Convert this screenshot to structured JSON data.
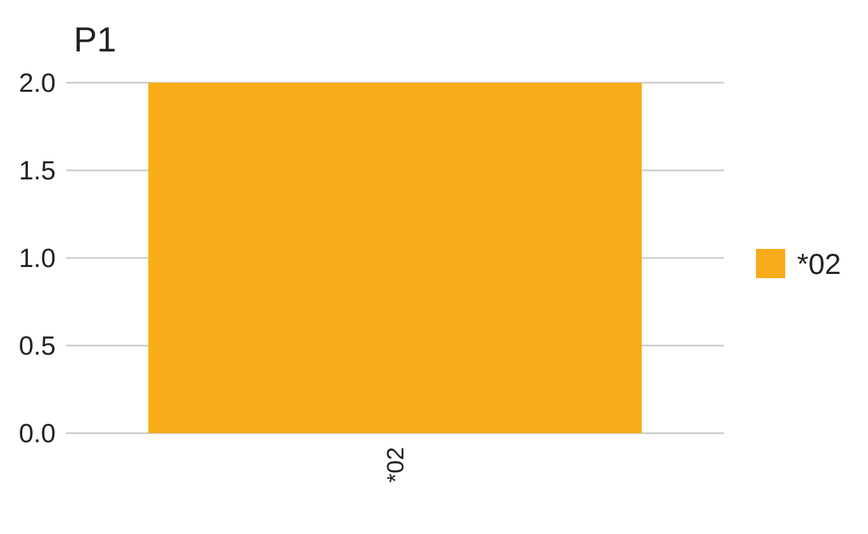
{
  "chart_data": {
    "type": "bar",
    "title": "P1",
    "categories": [
      "*02"
    ],
    "series": [
      {
        "name": "*02",
        "values": [
          2.0
        ],
        "color": "#F8AC19"
      }
    ],
    "xlabel": "",
    "ylabel": "",
    "ylim": [
      0,
      2.0
    ],
    "yticks": [
      "0.0",
      "0.5",
      "1.0",
      "1.5",
      "2.0"
    ],
    "grid": "horizontal",
    "legend": {
      "position": "right",
      "entries": [
        "*02"
      ]
    },
    "colors": {
      "gridline": "#cccccc",
      "text": "#222222"
    }
  }
}
